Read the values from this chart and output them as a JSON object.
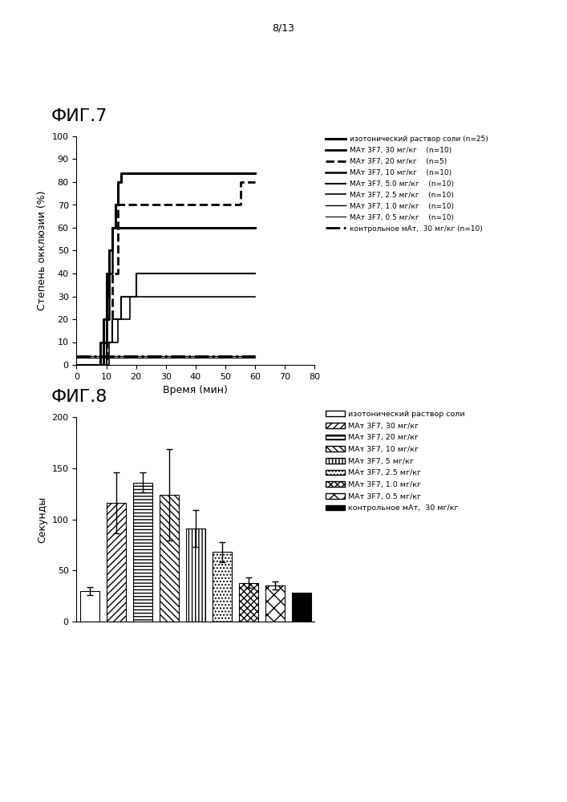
{
  "fig7_title": "ФИГ.7",
  "fig8_title": "ФИГ.8",
  "page_label": "8/13",
  "fig7_ylabel": "Степень окклюзии (%)",
  "fig7_xlabel": "Время (мин)",
  "fig8_ylabel": "Секунды",
  "fig7_xlim": [
    0,
    80
  ],
  "fig7_ylim": [
    0,
    100
  ],
  "fig7_yticks": [
    0,
    10,
    20,
    30,
    40,
    50,
    60,
    70,
    80,
    90,
    100
  ],
  "fig7_xticks": [
    0,
    10,
    20,
    30,
    40,
    50,
    60,
    70,
    80
  ],
  "fig8_ylim": [
    0,
    200
  ],
  "fig8_yticks": [
    0,
    50,
    100,
    150,
    200
  ],
  "fig7_curves": [
    {
      "label": "изотонический раствор соли (n=25)",
      "linestyle": "-",
      "linewidth": 2.2,
      "color": "#000000",
      "x": [
        0,
        8,
        8,
        9,
        9,
        10,
        10,
        11,
        11,
        12,
        12,
        13,
        13,
        14,
        14,
        15,
        15,
        60
      ],
      "y": [
        0,
        0,
        10,
        10,
        20,
        20,
        40,
        40,
        50,
        50,
        60,
        60,
        70,
        70,
        80,
        80,
        84,
        84
      ]
    },
    {
      "label": "МАт 3F7, 30 мг/кг    (n=10)",
      "linestyle": "-",
      "linewidth": 2.0,
      "color": "#000000",
      "x": [
        0,
        9,
        9,
        10,
        10,
        11,
        11,
        12,
        12,
        13,
        13,
        60
      ],
      "y": [
        0,
        0,
        10,
        10,
        30,
        30,
        50,
        50,
        60,
        60,
        60,
        60
      ]
    },
    {
      "label": "МАт 3F7, 20 мг/кг    (n=5)",
      "linestyle": "--",
      "linewidth": 2.0,
      "color": "#000000",
      "x": [
        0,
        10,
        10,
        12,
        12,
        14,
        14,
        50,
        50,
        55,
        55,
        60
      ],
      "y": [
        0,
        0,
        20,
        20,
        40,
        40,
        70,
        70,
        70,
        70,
        80,
        80
      ]
    },
    {
      "label": "МАт 3F7, 10 мг/кг    (n=10)",
      "linestyle": "-",
      "linewidth": 1.8,
      "color": "#000000",
      "x": [
        0,
        9,
        9,
        10,
        10,
        11,
        11,
        12,
        12,
        60
      ],
      "y": [
        0,
        0,
        10,
        10,
        20,
        20,
        40,
        40,
        60,
        60
      ]
    },
    {
      "label": "МАт 3F7, 5.0 мг/кг    (n=10)",
      "linestyle": "-",
      "linewidth": 1.5,
      "color": "#000000",
      "x": [
        0,
        10,
        10,
        12,
        12,
        15,
        15,
        20,
        20,
        60
      ],
      "y": [
        0,
        0,
        10,
        10,
        20,
        20,
        30,
        30,
        40,
        40
      ]
    },
    {
      "label": "МАт 3F7, 2.5 мг/кг    (n=10)",
      "linestyle": "-",
      "linewidth": 1.2,
      "color": "#000000",
      "x": [
        0,
        11,
        11,
        14,
        14,
        18,
        18,
        60
      ],
      "y": [
        0,
        0,
        10,
        10,
        20,
        20,
        30,
        30
      ]
    },
    {
      "label": "МАт 3F7, 1.0 мг/кг    (n=10)",
      "linestyle": "-",
      "linewidth": 1.0,
      "color": "#000000",
      "x": [
        0,
        60
      ],
      "y": [
        4,
        4
      ]
    },
    {
      "label": "МАт 3F7, 0.5 мг/кг    (n=10)",
      "linestyle": "-",
      "linewidth": 0.8,
      "color": "#000000",
      "x": [
        0,
        60
      ],
      "y": [
        3,
        3
      ]
    },
    {
      "label": "контрольное мАт,  30 мг/кг (n=10)",
      "linestyle": "-.",
      "linewidth": 2.0,
      "color": "#000000",
      "x": [
        0,
        60
      ],
      "y": [
        4,
        4
      ]
    }
  ],
  "fig8_bars": [
    {
      "label": "изотонический раствор соли",
      "value": 30,
      "error": 4,
      "hatch": "",
      "facecolor": "white",
      "edgecolor": "black"
    },
    {
      "label": "МАт 3F7, 30 мг/кг",
      "value": 116,
      "error": 30,
      "hatch": "////",
      "facecolor": "white",
      "edgecolor": "black"
    },
    {
      "label": "МАт 3F7, 20 мг/кг",
      "value": 136,
      "error": 10,
      "hatch": "----",
      "facecolor": "white",
      "edgecolor": "black"
    },
    {
      "label": "МАт 3F7, 10 мг/кг",
      "value": 124,
      "error": 45,
      "hatch": "\\\\\\\\",
      "facecolor": "white",
      "edgecolor": "black"
    },
    {
      "label": "МАт 3F7, 5 мг/кг",
      "value": 91,
      "error": 18,
      "hatch": "||||",
      "facecolor": "white",
      "edgecolor": "black"
    },
    {
      "label": "МАт 3F7, 2.5 мг/кг",
      "value": 68,
      "error": 10,
      "hatch": "....",
      "facecolor": "white",
      "edgecolor": "black"
    },
    {
      "label": "МАт 3F7, 1.0 мг/кг",
      "value": 38,
      "error": 5,
      "hatch": "xxxx",
      "facecolor": "white",
      "edgecolor": "black"
    },
    {
      "label": "МАт 3F7, 0.5 мг/кг",
      "value": 35,
      "error": 4,
      "hatch": "xx",
      "facecolor": "white",
      "edgecolor": "black"
    },
    {
      "label": "контрольное мАт,  30 мг/кг",
      "value": 28,
      "error": 0,
      "hatch": "",
      "facecolor": "black",
      "edgecolor": "black"
    }
  ],
  "background_color": "white",
  "font_size_title": 16,
  "font_size_label": 9,
  "font_size_tick": 8
}
